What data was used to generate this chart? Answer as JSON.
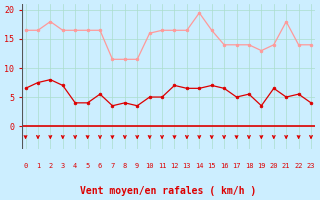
{
  "x": [
    0,
    1,
    2,
    3,
    4,
    5,
    6,
    7,
    8,
    9,
    10,
    11,
    12,
    13,
    14,
    15,
    16,
    17,
    18,
    19,
    20,
    21,
    22,
    23
  ],
  "wind_avg": [
    6.5,
    7.5,
    8.0,
    7.0,
    4.0,
    4.0,
    5.5,
    3.5,
    4.0,
    3.5,
    5.0,
    5.0,
    7.0,
    6.5,
    6.5,
    7.0,
    6.5,
    5.0,
    5.5,
    3.5,
    6.5,
    5.0,
    5.5,
    4.0
  ],
  "wind_gust": [
    16.5,
    16.5,
    18.0,
    16.5,
    16.5,
    16.5,
    16.5,
    11.5,
    11.5,
    11.5,
    16.0,
    16.5,
    16.5,
    16.5,
    19.5,
    16.5,
    14.0,
    14.0,
    14.0,
    13.0,
    14.0,
    18.0,
    14.0,
    14.0
  ],
  "avg_color": "#dd0000",
  "gust_color": "#ff9999",
  "background_color": "#cceeff",
  "grid_color": "#aaddcc",
  "xlabel": "Vent moyen/en rafales ( km/h )",
  "xlabel_color": "#dd0000",
  "tick_color": "#dd0000",
  "ylim": [
    -4,
    21
  ],
  "yticks": [
    0,
    5,
    10,
    15,
    20
  ],
  "xlim": [
    -0.3,
    23.3
  ],
  "arrow_color": "#dd0000"
}
